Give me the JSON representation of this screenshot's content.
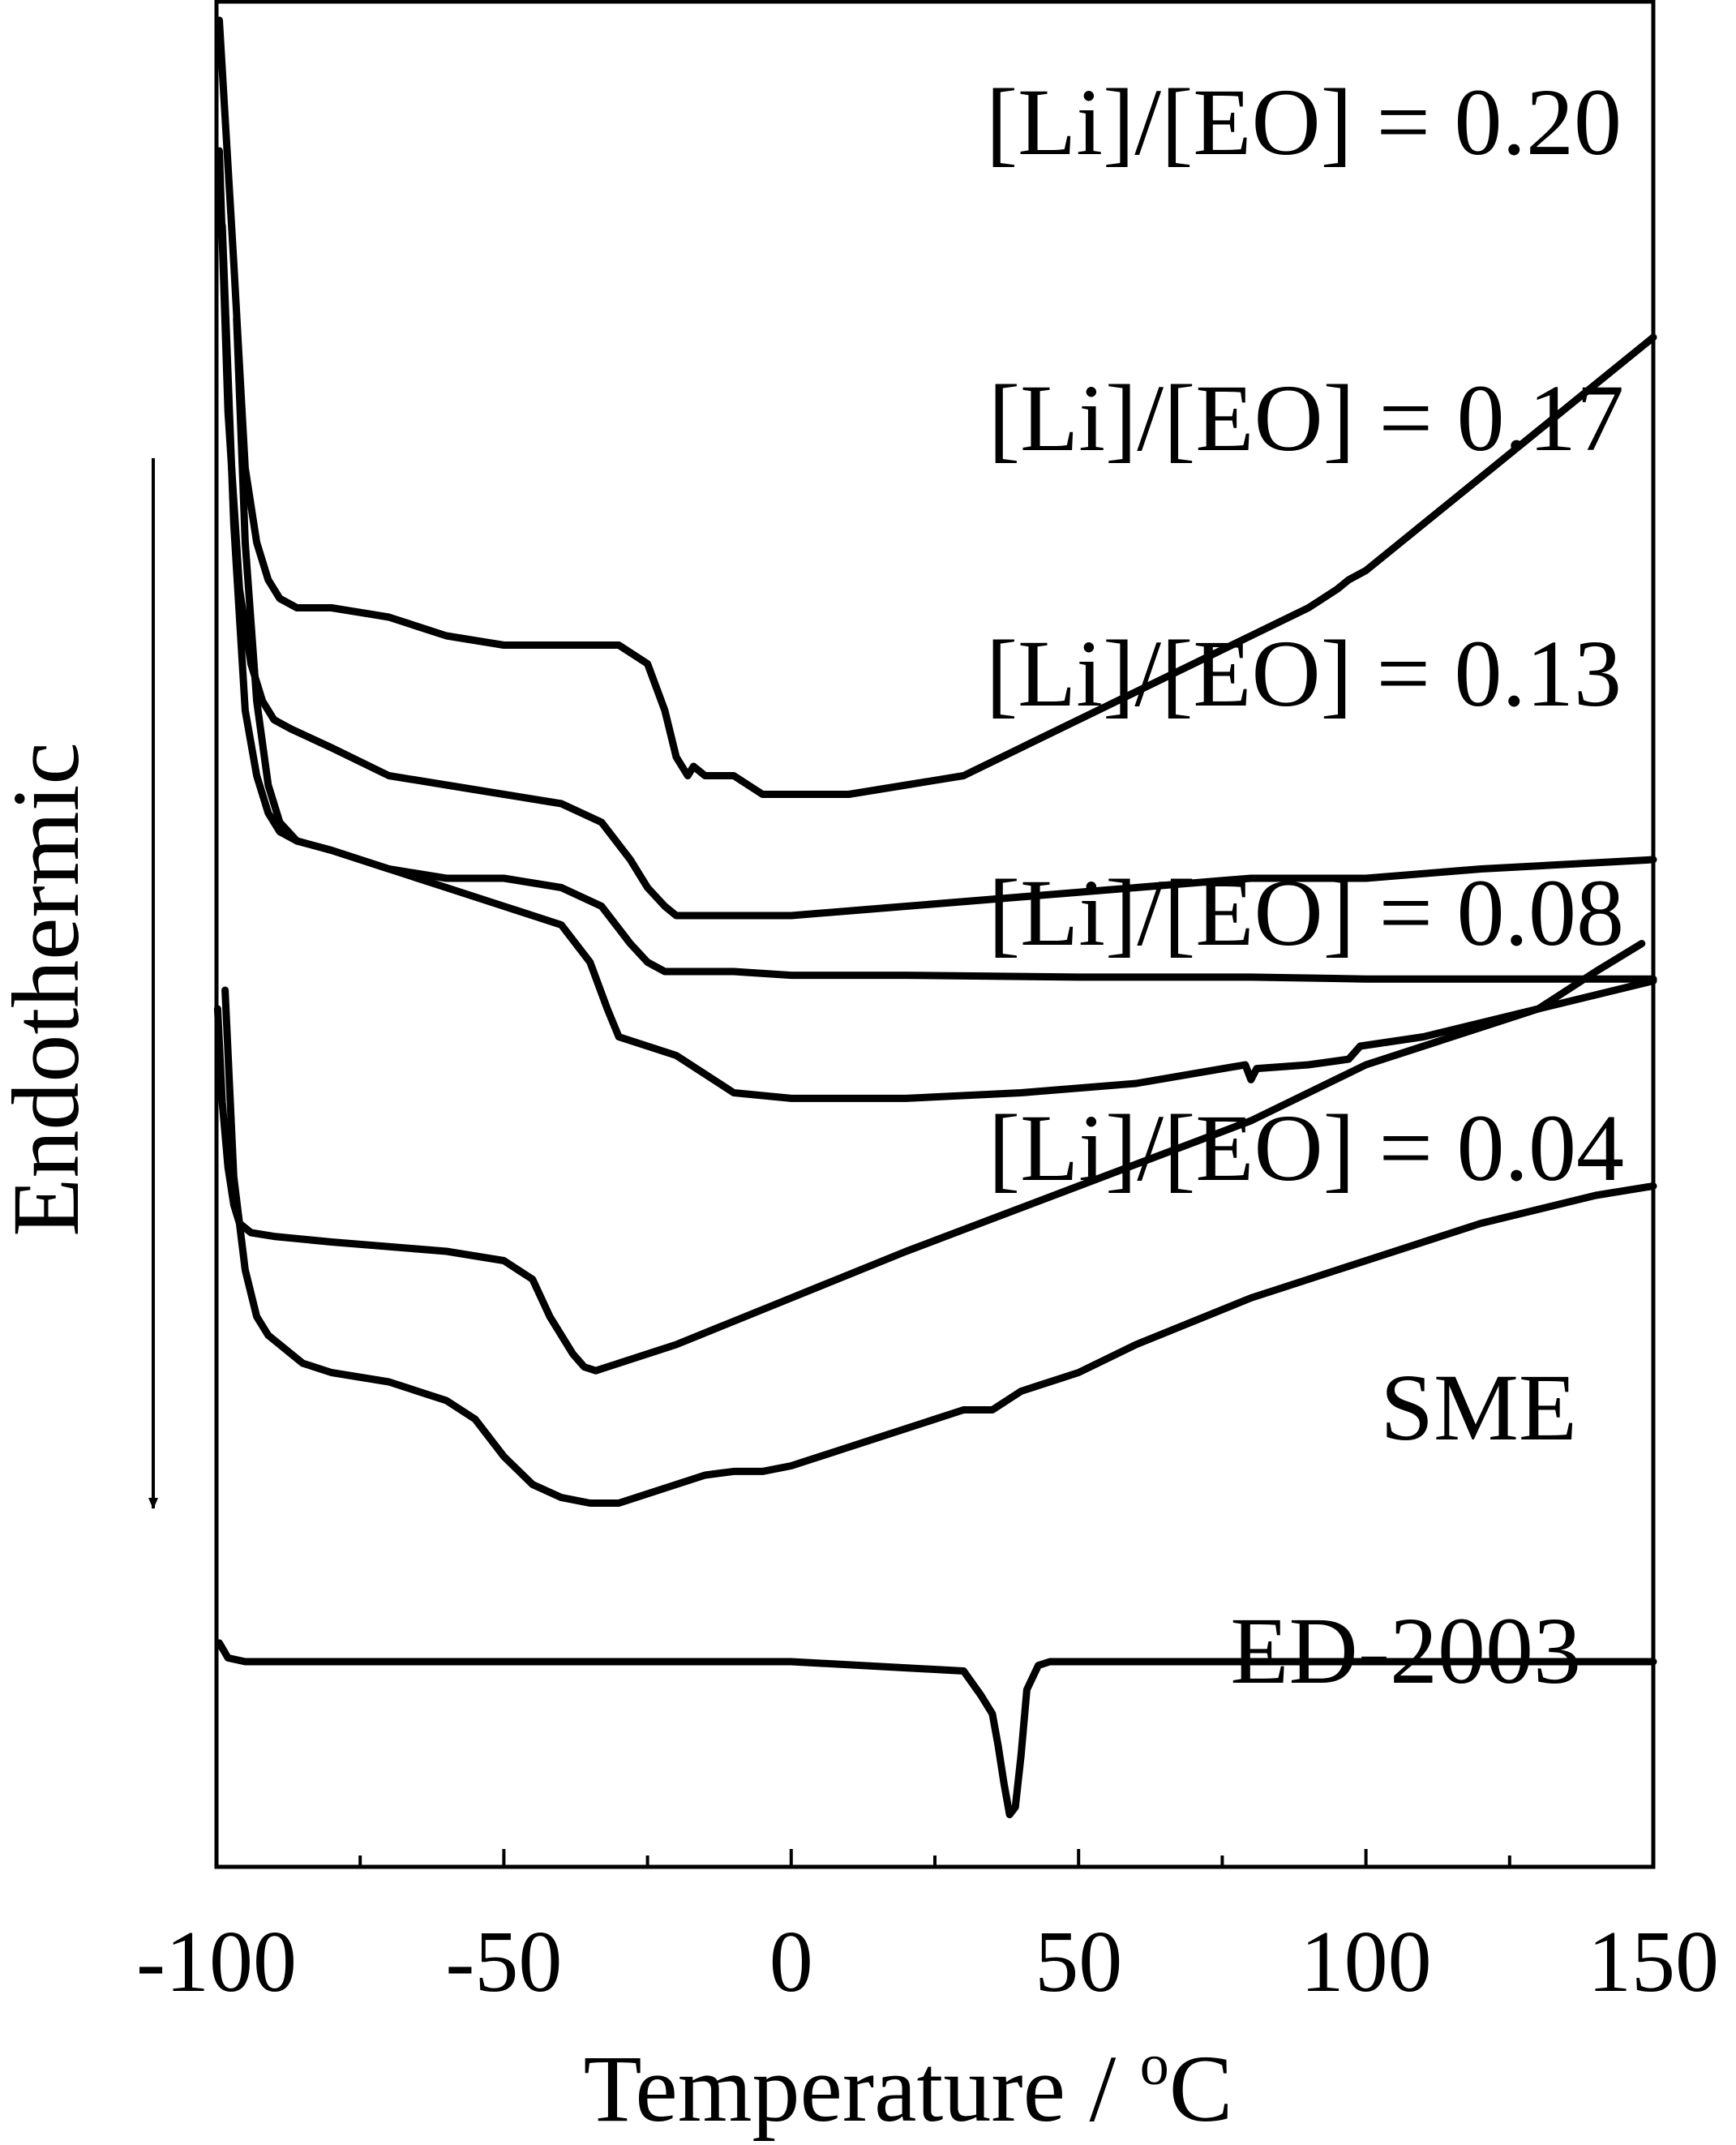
{
  "chart_data": {
    "type": "line",
    "title": "",
    "xlabel": "Temperature / ",
    "xlabel_sup": "o",
    "xlabel_unit": "C",
    "ylabel": "Endothermic",
    "xlim": [
      -100,
      150
    ],
    "x_ticks": [
      -100,
      -50,
      0,
      50,
      100,
      150
    ],
    "x_tick_labels": [
      "-100",
      "-50",
      "0",
      "50",
      "100",
      "150"
    ],
    "x_minor_ticks": [
      -75,
      -25,
      25,
      75,
      125
    ],
    "y_axis_visible": false,
    "grid": false,
    "legend": "none (each curve labeled directly above its trace)",
    "series": [
      {
        "name": "[Li]/[EO] = 0.20",
        "x": [
          -99.5,
          -97,
          -95,
          -93,
          -91,
          -89,
          -86,
          -80,
          -70,
          -60,
          -50,
          -40,
          -30,
          -25,
          -22,
          -20,
          -18,
          -17,
          -15,
          -10,
          -5,
          0,
          10,
          20,
          30,
          40,
          50,
          60,
          70,
          80,
          90,
          95,
          97,
          100,
          110,
          120,
          130,
          140,
          150
        ],
        "y": [
          9.9,
          8.6,
          7.5,
          7.1,
          6.9,
          6.8,
          6.75,
          6.75,
          6.7,
          6.6,
          6.55,
          6.55,
          6.55,
          6.45,
          6.2,
          5.95,
          5.85,
          5.9,
          5.85,
          5.85,
          5.75,
          5.75,
          5.75,
          5.8,
          5.85,
          6.0,
          6.15,
          6.3,
          6.45,
          6.6,
          6.75,
          6.85,
          6.9,
          6.95,
          7.2,
          7.45,
          7.7,
          7.95,
          8.2
        ]
      },
      {
        "name": "[Li]/[EO] = 0.17",
        "x": [
          -99.5,
          -98,
          -96,
          -94,
          -92,
          -90,
          -87,
          -80,
          -70,
          -60,
          -50,
          -40,
          -33,
          -28,
          -25,
          -22,
          -20,
          -10,
          0,
          20,
          40,
          60,
          80,
          100,
          120,
          150
        ],
        "y": [
          9.2,
          7.8,
          6.85,
          6.45,
          6.25,
          6.15,
          6.1,
          6.0,
          5.85,
          5.8,
          5.75,
          5.7,
          5.6,
          5.4,
          5.25,
          5.15,
          5.1,
          5.1,
          5.1,
          5.15,
          5.2,
          5.25,
          5.3,
          5.3,
          5.35,
          5.4
        ]
      },
      {
        "name": "[Li]/[EO] = 0.13",
        "x": [
          -99,
          -97,
          -95,
          -93,
          -91,
          -89,
          -86,
          -80,
          -70,
          -60,
          -50,
          -40,
          -33,
          -28,
          -25,
          -22,
          -10,
          0,
          20,
          50,
          80,
          100,
          150
        ],
        "y": [
          8.8,
          7.2,
          6.2,
          5.85,
          5.65,
          5.55,
          5.5,
          5.45,
          5.35,
          5.3,
          5.3,
          5.25,
          5.15,
          4.95,
          4.85,
          4.8,
          4.8,
          4.78,
          4.78,
          4.77,
          4.77,
          4.76,
          4.76
        ]
      },
      {
        "name": "[Li]/[EO] = 0.08",
        "x": [
          -96.5,
          -95,
          -93,
          -91,
          -89,
          -86,
          -80,
          -70,
          -60,
          -50,
          -40,
          -35,
          -32,
          -30,
          -20,
          -15,
          -10,
          0,
          20,
          40,
          60,
          79,
          80,
          81,
          90,
          97,
          99,
          110,
          130,
          150
        ],
        "y": [
          8.3,
          7.1,
          6.25,
          5.8,
          5.6,
          5.5,
          5.45,
          5.35,
          5.25,
          5.15,
          5.05,
          4.85,
          4.6,
          4.45,
          4.35,
          4.25,
          4.15,
          4.12,
          4.12,
          4.15,
          4.2,
          4.3,
          4.22,
          4.28,
          4.3,
          4.33,
          4.4,
          4.45,
          4.6,
          4.75
        ]
      },
      {
        "name": "[Li]/[EO] = 0.04",
        "x": [
          -99.8,
          -99,
          -98,
          -97,
          -96,
          -94,
          -90,
          -80,
          -60,
          -50,
          -45,
          -42,
          -40,
          -38,
          -36,
          -34,
          -30,
          -20,
          0,
          20,
          50,
          80,
          100,
          120,
          130,
          140,
          148
        ],
        "y": [
          4.6,
          4.1,
          3.75,
          3.55,
          3.45,
          3.4,
          3.38,
          3.35,
          3.3,
          3.25,
          3.15,
          2.95,
          2.85,
          2.75,
          2.68,
          2.66,
          2.7,
          2.8,
          3.05,
          3.3,
          3.65,
          4.0,
          4.3,
          4.5,
          4.6,
          4.8,
          4.95
        ]
      },
      {
        "name": "SME",
        "x": [
          -98.5,
          -97,
          -95,
          -93,
          -91,
          -89,
          -87,
          -85,
          -80,
          -70,
          -60,
          -55,
          -50,
          -45,
          -40,
          -35,
          -30,
          -25,
          -20,
          -15,
          -10,
          -5,
          0,
          10,
          20,
          30,
          35,
          40,
          50,
          60,
          80,
          100,
          120,
          140,
          150
        ],
        "y": [
          4.7,
          3.7,
          3.2,
          2.95,
          2.85,
          2.8,
          2.75,
          2.7,
          2.65,
          2.6,
          2.5,
          2.4,
          2.2,
          2.05,
          1.98,
          1.95,
          1.95,
          2.0,
          2.05,
          2.1,
          2.12,
          2.12,
          2.15,
          2.25,
          2.35,
          2.45,
          2.45,
          2.55,
          2.65,
          2.8,
          3.05,
          3.25,
          3.45,
          3.6,
          3.65
        ]
      },
      {
        "name": "ED-2003",
        "x": [
          -99.5,
          -98,
          -95,
          -90,
          -50,
          0,
          30,
          33,
          35,
          36,
          37,
          38,
          39,
          40,
          41,
          43,
          45,
          50,
          100,
          150
        ],
        "y": [
          1.2,
          1.12,
          1.1,
          1.1,
          1.1,
          1.1,
          1.05,
          0.92,
          0.82,
          0.65,
          0.45,
          0.28,
          0.32,
          0.6,
          0.95,
          1.08,
          1.1,
          1.1,
          1.1,
          1.1
        ]
      }
    ],
    "annotation": "downward arrow next to the Endothermic label"
  }
}
